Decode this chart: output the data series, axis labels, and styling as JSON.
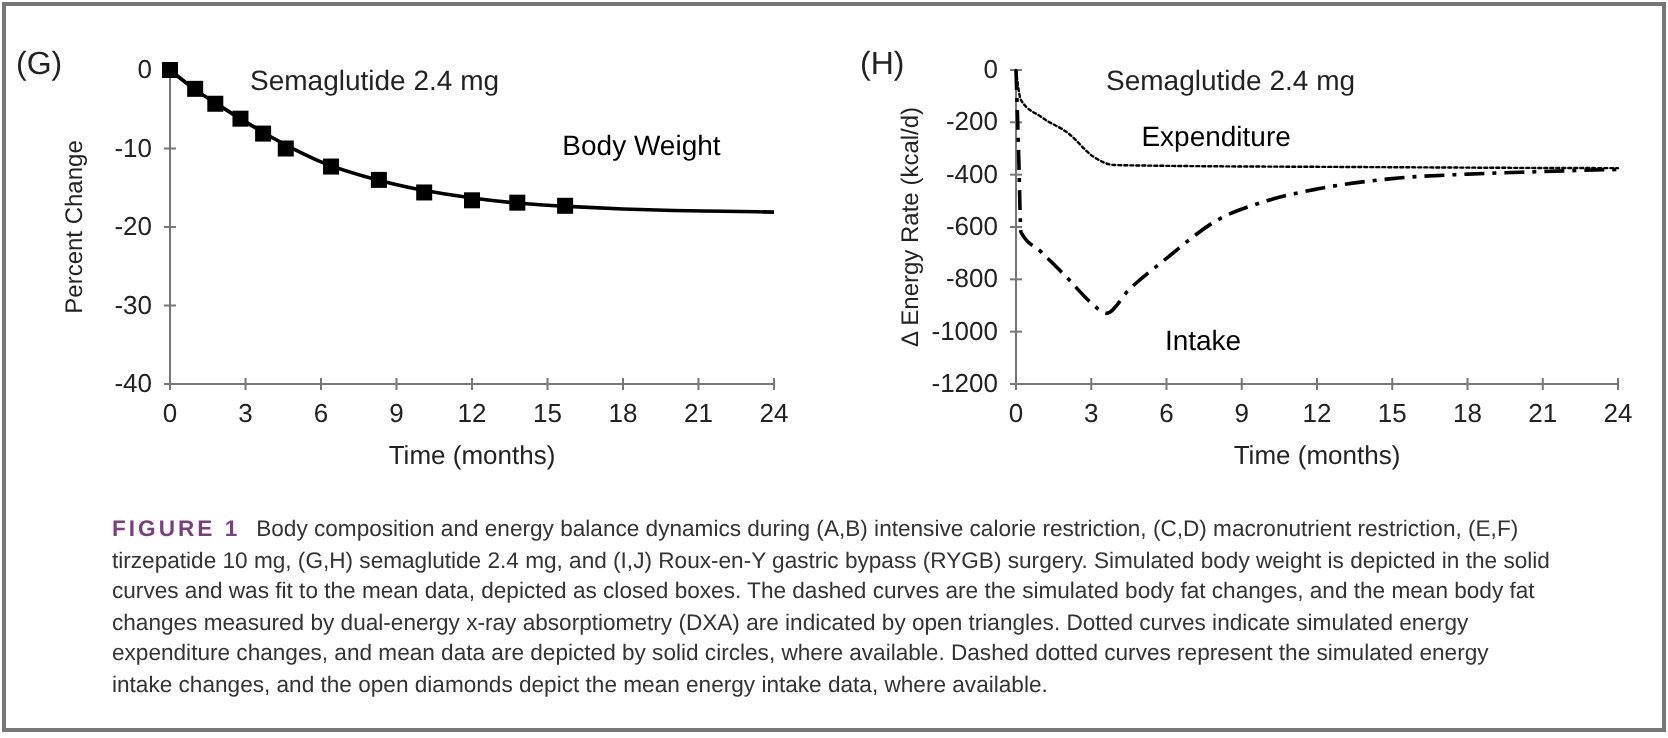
{
  "chart_data": [
    {
      "type": "line",
      "title": "(G)",
      "subtitle": "Semaglutide 2.4 mg",
      "xlabel": "Time (months)",
      "ylabel": "Percent Change",
      "xlim": [
        0,
        24
      ],
      "xticks": [
        0,
        3,
        6,
        9,
        12,
        15,
        18,
        21,
        24
      ],
      "ylim": [
        -40,
        0
      ],
      "yticks": [
        -40,
        -30,
        -20,
        -10,
        0
      ],
      "series": [
        {
          "name": "Body Weight",
          "type": "line",
          "color": "#000000",
          "line_style": "solid",
          "x": [
            0,
            1,
            2,
            3,
            4,
            5,
            6,
            8,
            10,
            12,
            14,
            16,
            18,
            20,
            22,
            24
          ],
          "values": [
            0,
            -2.5,
            -4.6,
            -6.6,
            -8.5,
            -10.2,
            -11.7,
            -13.8,
            -15.3,
            -16.3,
            -17.0,
            -17.4,
            -17.7,
            -17.9,
            -18.0,
            -18.1
          ]
        },
        {
          "type": "scatter",
          "color": "#000000",
          "marker": "square",
          "x": [
            0,
            1.0,
            1.8,
            2.8,
            3.7,
            4.6,
            6.4,
            8.3,
            10.1,
            12.0,
            13.8,
            15.7
          ],
          "values": [
            0,
            -2.4,
            -4.3,
            -6.2,
            -8.1,
            -10.0,
            -12.3,
            -14.0,
            -15.6,
            -16.6,
            -16.9,
            -17.3
          ]
        }
      ]
    },
    {
      "type": "line",
      "title": "(H)",
      "subtitle": "Semaglutide 2.4 mg",
      "xlabel": "Time (months)",
      "ylabel": "Δ Energy Rate (kcal/d)",
      "xlim": [
        0,
        24
      ],
      "xticks": [
        0,
        3,
        6,
        9,
        12,
        15,
        18,
        21,
        24
      ],
      "ylim": [
        -1200,
        0
      ],
      "yticks": [
        -1200,
        -1000,
        -800,
        -600,
        -400,
        -200,
        0
      ],
      "series": [
        {
          "name": "Expenditure",
          "type": "line",
          "color": "#000000",
          "line_style": "dotted",
          "x": [
            0,
            0.2,
            1.0,
            2.1,
            3.1,
            3.9,
            5,
            8,
            12,
            16,
            20,
            24
          ],
          "values": [
            0,
            -115,
            -179,
            -243,
            -332,
            -363,
            -365,
            -368,
            -370,
            -372,
            -374,
            -375
          ]
        },
        {
          "name": "Intake",
          "type": "line",
          "color": "#000000",
          "line_style": "dashdot",
          "x": [
            0,
            0.1,
            0.2,
            1,
            2,
            3,
            3.6,
            4.5,
            6,
            8,
            10,
            12,
            15,
            18,
            21,
            24
          ],
          "values": [
            0,
            -300,
            -620,
            -695,
            -790,
            -890,
            -930,
            -840,
            -720,
            -575,
            -500,
            -455,
            -415,
            -398,
            -388,
            -380
          ]
        }
      ]
    },
    {
      "type": "other",
      "annotations": [
        "FIGURE 1",
        "Body composition and energy balance dynamics during (A,B) intensive calorie restriction, (C,D) macronutrient restriction, (E,F) tirzepatide 10 mg, (G,H) semaglutide 2.4 mg, and (I,J) Roux-en-Y gastric bypass (RYGB) surgery. Simulated body weight is depicted in the solid curves and was fit to the mean data, depicted as closed boxes. The dashed curves are the simulated body fat changes, and the mean body fat changes measured by dual-energy x-ray absorptiometry (DXA) are indicated by open triangles. Dotted curves indicate simulated energy expenditure changes, and mean data are depicted by solid circles, where available. Dashed dotted curves represent the simulated energy intake changes, and the open diamonds depict the mean energy intake data, where available."
      ]
    }
  ]
}
